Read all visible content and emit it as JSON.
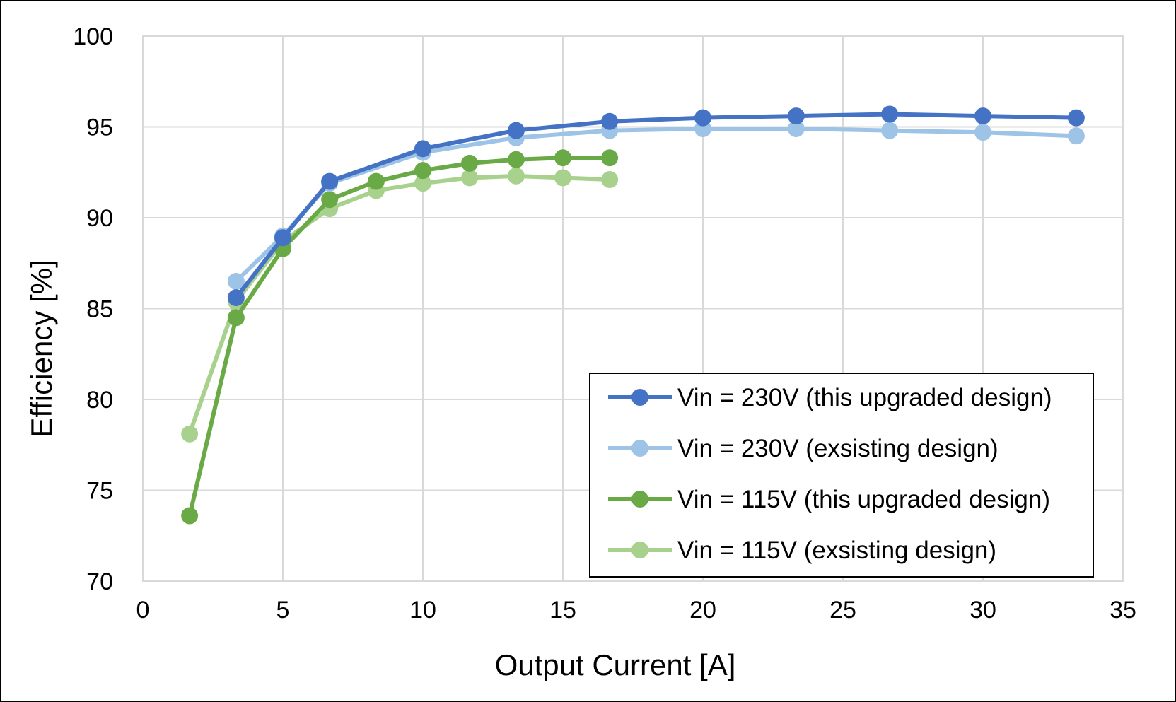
{
  "chart_data": {
    "type": "line",
    "title": "",
    "xlabel": "Output Current [A]",
    "ylabel": "Efficiency [%]",
    "xlim": [
      0,
      35
    ],
    "ylim": [
      70,
      100
    ],
    "xticks": [
      0,
      5,
      10,
      15,
      20,
      25,
      30,
      35
    ],
    "yticks": [
      70,
      75,
      80,
      85,
      90,
      95,
      100
    ],
    "grid": true,
    "legend_position": "bottom-right",
    "series": [
      {
        "name": "Vin = 230V (this upgraded design)",
        "color": "#4472c4",
        "x": [
          3.33,
          5.0,
          6.67,
          10.0,
          13.33,
          16.67,
          20.0,
          23.33,
          26.67,
          30.0,
          33.33
        ],
        "values": [
          85.6,
          88.9,
          92.0,
          93.8,
          94.8,
          95.3,
          95.5,
          95.6,
          95.7,
          95.6,
          95.5
        ]
      },
      {
        "name": "Vin = 230V (exsisting design)",
        "color": "#9dc3e6",
        "x": [
          3.33,
          5.0,
          6.67,
          10.0,
          13.33,
          16.67,
          20.0,
          23.33,
          26.67,
          30.0,
          33.33
        ],
        "values": [
          86.5,
          89.0,
          91.9,
          93.6,
          94.4,
          94.8,
          94.9,
          94.9,
          94.8,
          94.7,
          94.5
        ]
      },
      {
        "name": "Vin = 115V (this upgraded design)",
        "color": "#6aaa46",
        "x": [
          1.67,
          3.33,
          5.0,
          6.67,
          8.33,
          10.0,
          11.67,
          13.33,
          15.0,
          16.67
        ],
        "values": [
          73.6,
          84.5,
          88.3,
          91.0,
          92.0,
          92.6,
          93.0,
          93.2,
          93.3,
          93.3
        ]
      },
      {
        "name": "Vin = 115V (exsisting design)",
        "color": "#a9d18e",
        "x": [
          1.67,
          3.33,
          5.0,
          6.67,
          8.33,
          10.0,
          11.67,
          13.33,
          15.0,
          16.67
        ],
        "values": [
          78.1,
          85.4,
          88.7,
          90.5,
          91.5,
          91.9,
          92.2,
          92.3,
          92.2,
          92.1
        ]
      }
    ]
  }
}
